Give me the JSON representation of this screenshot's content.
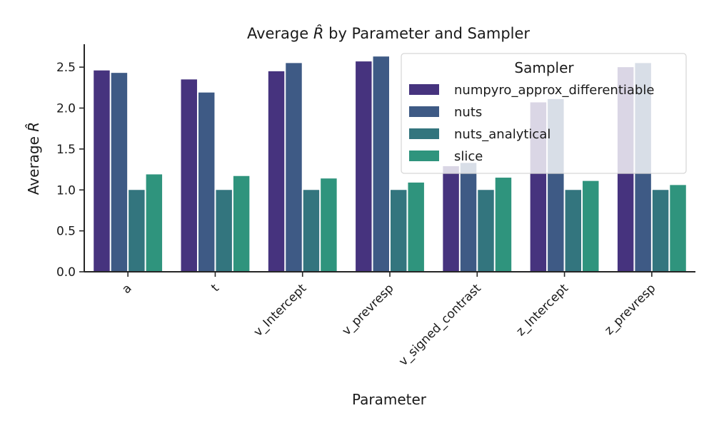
{
  "chart_data": {
    "type": "bar",
    "title_prefix": "Average ",
    "title_rhat": "R̂",
    "title_suffix": " by Parameter and Sampler",
    "xlabel": "Parameter",
    "ylabel_prefix": "Average ",
    "ylabel_rhat": "R̂",
    "ylim": [
      0,
      2.78
    ],
    "yticks": [
      "0.0",
      "0.5",
      "1.0",
      "1.5",
      "2.0",
      "2.5"
    ],
    "categories": [
      "a",
      "t",
      "v_Intercept",
      "v_prevresp",
      "v_signed_contrast",
      "z_Intercept",
      "z_prevresp"
    ],
    "legend_title": "Sampler",
    "legend_position": "top-right",
    "series": [
      {
        "name": "numpyro_approx_differentiable",
        "color": "#46337e",
        "values": [
          2.46,
          2.35,
          2.45,
          2.57,
          1.29,
          2.07,
          2.5
        ]
      },
      {
        "name": "nuts",
        "color": "#3e5a85",
        "values": [
          2.43,
          2.19,
          2.55,
          2.63,
          1.33,
          2.11,
          2.55
        ]
      },
      {
        "name": "nuts_analytical",
        "color": "#33757e",
        "values": [
          1.0,
          1.0,
          1.0,
          1.0,
          1.0,
          1.0,
          1.0
        ]
      },
      {
        "name": "slice",
        "color": "#2f947d",
        "values": [
          1.19,
          1.17,
          1.14,
          1.09,
          1.15,
          1.11,
          1.06
        ]
      }
    ]
  }
}
